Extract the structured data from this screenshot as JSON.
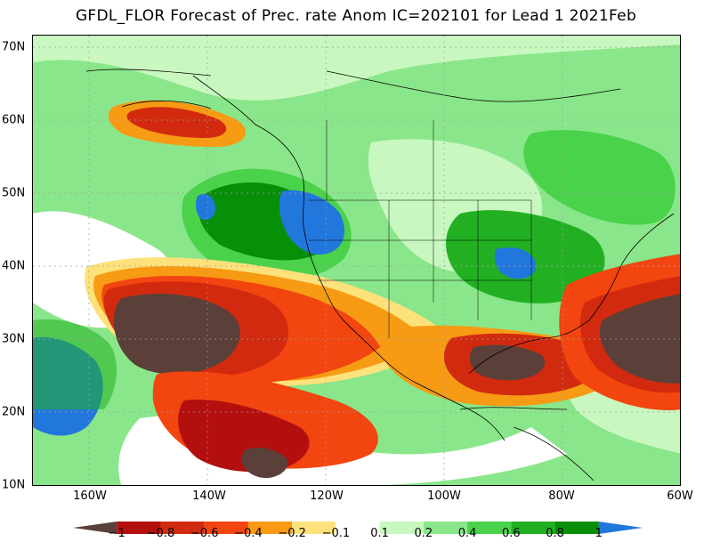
{
  "title": "GFDL_FLOR Forecast of Prec. rate Anom IC=202101 for Lead 1 2021Feb",
  "map": {
    "lat_labels": [
      "70N",
      "60N",
      "50N",
      "40N",
      "30N",
      "20N",
      "10N"
    ],
    "lon_labels": [
      "160W",
      "140W",
      "120W",
      "100W",
      "80W",
      "60W"
    ],
    "lon_range": [
      "170W",
      "60W"
    ],
    "lat_range": [
      "10N",
      "71N"
    ],
    "palette": {
      "brown": "#5a4039",
      "darkred": "#b40f0f",
      "red": "#d42a0f",
      "orangered": "#f2450f",
      "orange": "#f79a14",
      "yellow": "#fde17a",
      "white": "#ffffff",
      "lightgreen": "#c8f8c0",
      "green1": "#8ae68a",
      "green2": "#4ad24a",
      "green3": "#22b022",
      "darkgreen": "#088f08",
      "blue": "#2277dd"
    }
  },
  "colorbar": {
    "labels": [
      "−1",
      "−0.8",
      "−0.6",
      "−0.4",
      "−0.2",
      "−0.1",
      "0.1",
      "0.2",
      "0.4",
      "0.6",
      "0.8",
      "1"
    ],
    "colors": [
      "#5a4039",
      "#b40f0f",
      "#d22a0f",
      "#f2450f",
      "#f79a14",
      "#fde17a",
      "#ffffff",
      "#c8f8c0",
      "#8ae68a",
      "#4ad24a",
      "#22b022",
      "#088f08",
      "#2277dd"
    ]
  }
}
